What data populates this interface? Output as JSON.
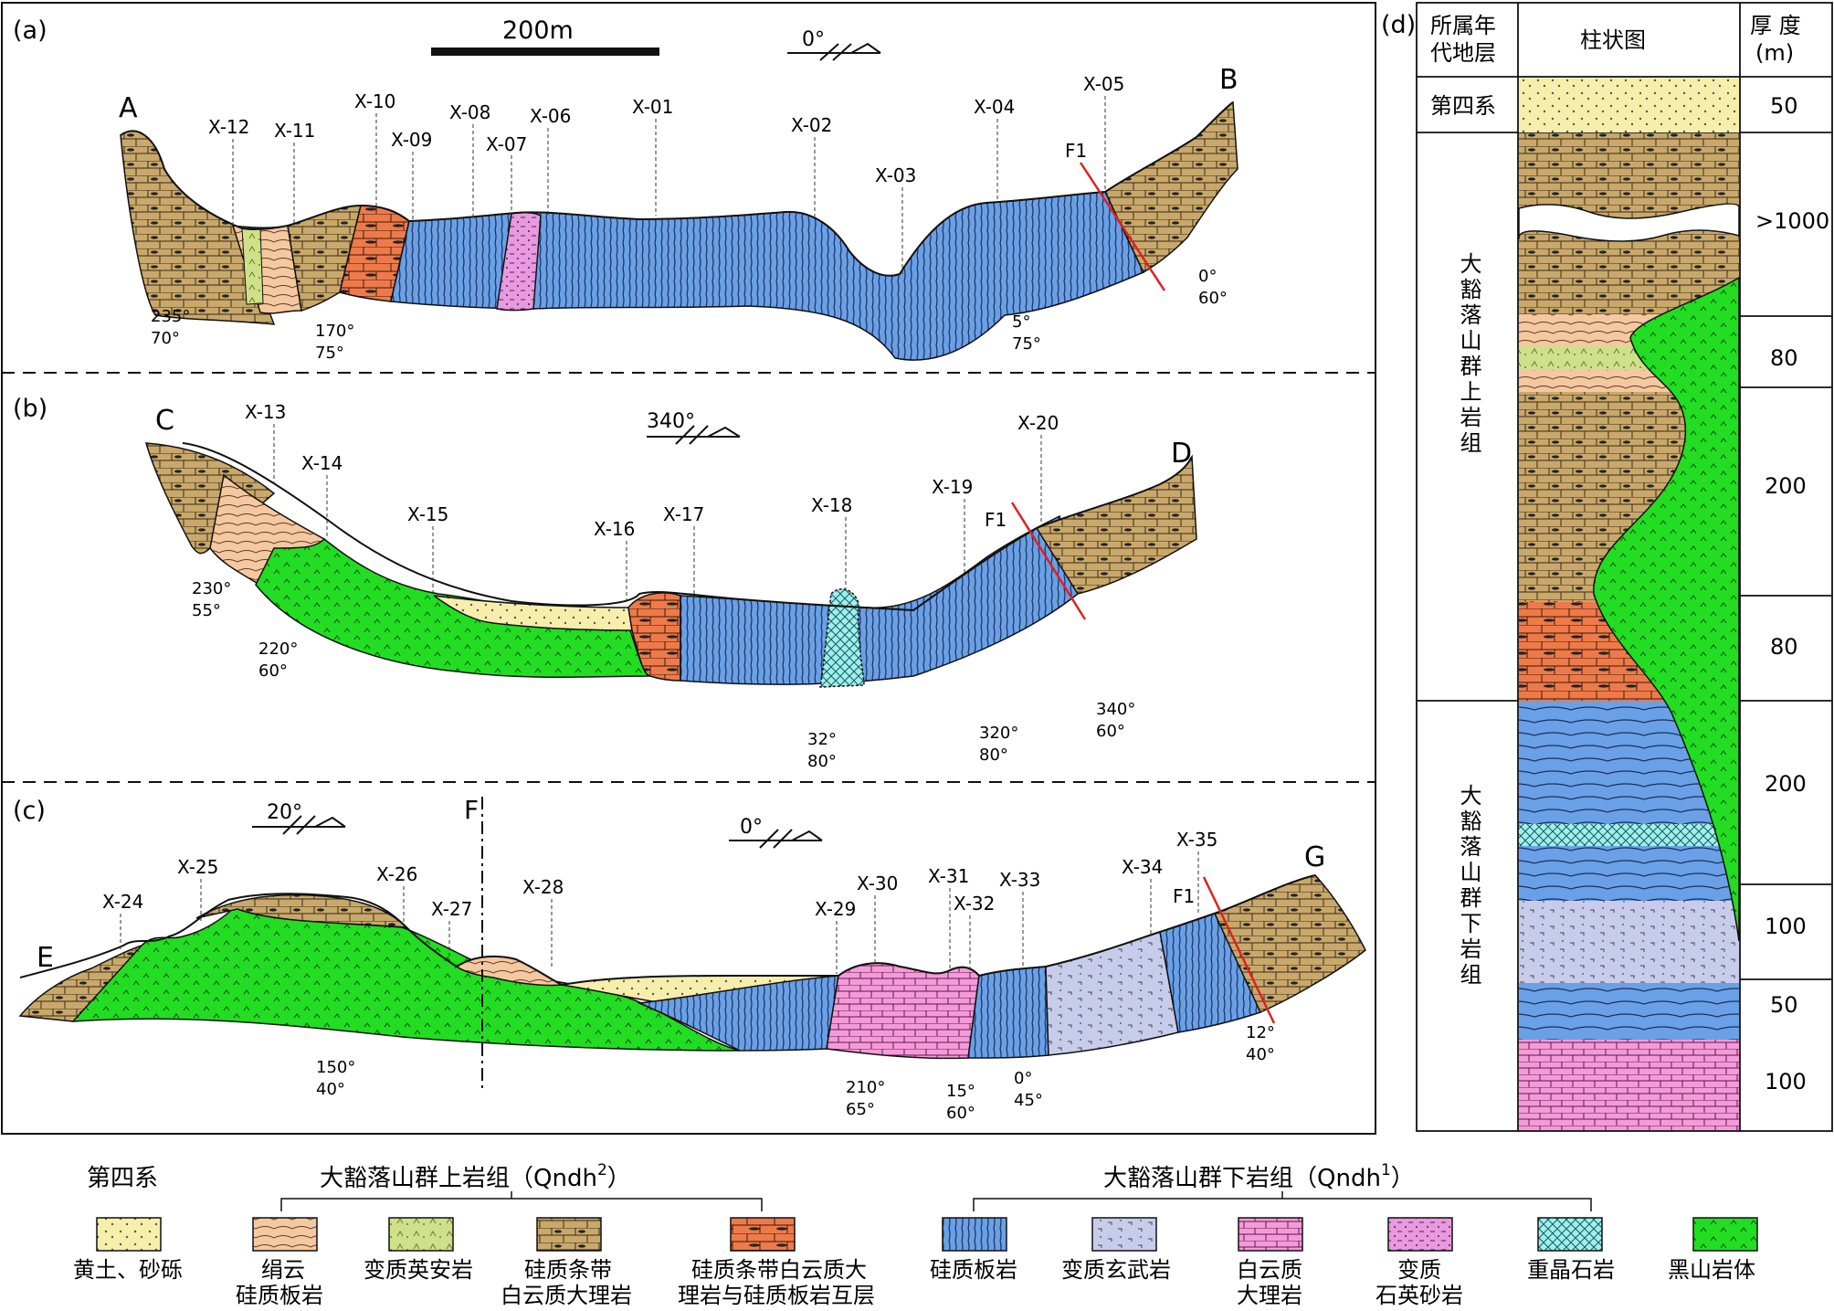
{
  "scale_bar": "200m",
  "dip_symbols": [
    "0°",
    "340°",
    "20°",
    "0°"
  ],
  "panels": [
    {
      "label": "(a)",
      "start": "A",
      "end": "B",
      "samples": [
        "X-12",
        "X-11",
        "X-10",
        "X-09",
        "X-08",
        "X-07",
        "X-06",
        "X-01",
        "X-02",
        "X-03",
        "X-04",
        "X-05"
      ],
      "attitudes": [
        [
          "235°",
          "70°"
        ],
        [
          "170°",
          "75°"
        ],
        [
          "5°",
          "75°"
        ],
        [
          "0°",
          "60°"
        ]
      ],
      "fault": "F1"
    },
    {
      "label": "(b)",
      "start": "C",
      "end": "D",
      "samples": [
        "X-13",
        "X-14",
        "X-15",
        "X-16",
        "X-17",
        "X-18",
        "X-19",
        "X-20"
      ],
      "attitudes": [
        [
          "230°",
          "55°"
        ],
        [
          "220°",
          "60°"
        ],
        [
          "32°",
          "80°"
        ],
        [
          "320°",
          "80°"
        ],
        [
          "340°",
          "60°"
        ]
      ],
      "fault": "F1"
    },
    {
      "label": "(c)",
      "start": "E",
      "end": "G",
      "samples": [
        "X-24",
        "X-25",
        "X-26",
        "X-27",
        "X-28",
        "X-29",
        "X-30",
        "X-31",
        "X-32",
        "X-33",
        "X-34",
        "X-35"
      ],
      "attitudes": [
        [
          "150°",
          "40°"
        ],
        [
          "210°",
          "65°"
        ],
        [
          "15°",
          "60°"
        ],
        [
          "0°",
          "45°"
        ],
        [
          "12°",
          "40°"
        ]
      ],
      "fault": "F1",
      "fault_f": "F"
    }
  ],
  "column": {
    "label": "(d)",
    "headers": [
      "所属年",
      "代地层",
      "柱状图",
      "厚  度",
      "(m)"
    ],
    "units": [
      "第四系",
      "大豁落山群上岩组",
      "大豁落山群下岩组"
    ],
    "thickness": [
      "50",
      ">1000",
      "80",
      "200",
      "80",
      "200",
      "100",
      "50",
      "100"
    ]
  },
  "legend": {
    "group_quaternary": "第四系",
    "group_upper": "大豁落山群上岩组（Qndh",
    "group_upper_sup": "2",
    "group_lower": "大豁落山群下岩组（Qndh",
    "group_lower_sup": "1",
    "paren_close": "）",
    "items": [
      [
        "黄土、砂砾",
        ""
      ],
      [
        "绢云",
        "硅质板岩"
      ],
      [
        "变质英安岩",
        ""
      ],
      [
        "硅质条带",
        "白云质大理岩"
      ],
      [
        "硅质条带白云质大",
        "理岩与硅质板岩互层"
      ],
      [
        "硅质板岩",
        ""
      ],
      [
        "变质玄武岩",
        ""
      ],
      [
        "白云质",
        "大理岩"
      ],
      [
        "变质",
        "石英砂岩"
      ],
      [
        "重晶石岩",
        ""
      ],
      [
        "黑山岩体",
        ""
      ]
    ]
  },
  "colors": {
    "loess": "#f6eeaa",
    "sericite": "#f4c8a0",
    "dacite": "#cfe08a",
    "dolomarble": "#c9a86c",
    "interbed": "#ee7a4a",
    "slate": "#6aa0e6",
    "basalt": "#c8cceb",
    "marble": "#f59ad8",
    "quartzite": "#e79ae0",
    "barite": "#9ef0ee",
    "granite": "#22dd22"
  }
}
